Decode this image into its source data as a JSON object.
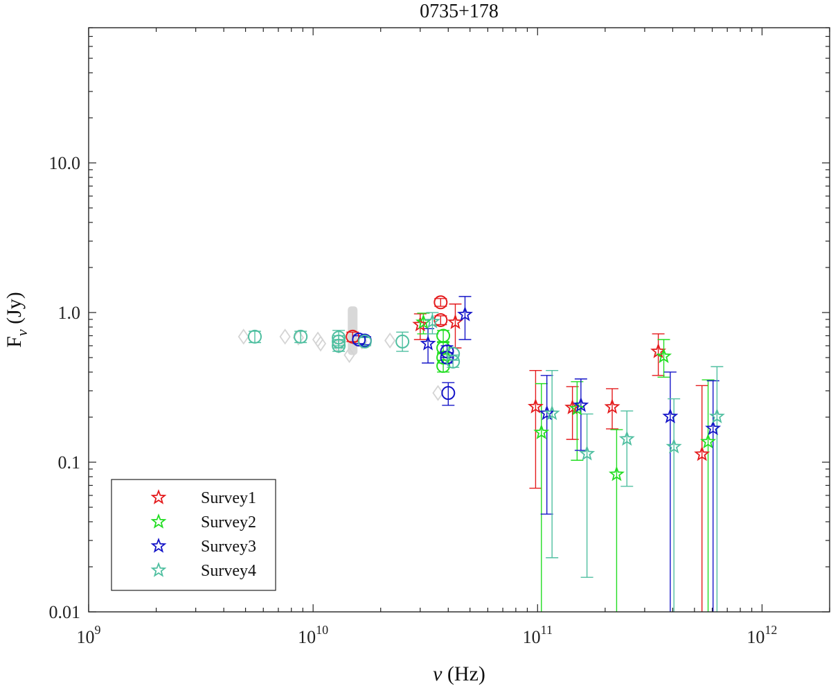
{
  "chart_data": {
    "type": "scatter",
    "title": "0735+178",
    "xlabel": "ν (Hz)",
    "ylabel_main": "F",
    "ylabel_sub": "ν",
    "ylabel_unit": " (Jy)",
    "xscale": "log",
    "yscale": "log",
    "xlim": [
      1000000000.0,
      2000000000000.0
    ],
    "ylim": [
      0.01,
      80
    ],
    "x_ticks": [
      {
        "value": 1000000000.0,
        "base": "10",
        "exp": "9"
      },
      {
        "value": 10000000000.0,
        "base": "10",
        "exp": "10"
      },
      {
        "value": 100000000000.0,
        "base": "10",
        "exp": "11"
      },
      {
        "value": 1000000000000.0,
        "base": "10",
        "exp": "12"
      }
    ],
    "y_ticks": [
      {
        "value": 0.01,
        "label": "0.01"
      },
      {
        "value": 0.1,
        "label": "0.1"
      },
      {
        "value": 1,
        "label": "1.0"
      },
      {
        "value": 10,
        "label": "10.0"
      }
    ],
    "legend": {
      "location": "lower-left",
      "entries": [
        "Survey1",
        "Survey2",
        "Survey3",
        "Survey4"
      ]
    },
    "colors": {
      "Survey1": "#e41a1c",
      "Survey2": "#22dd22",
      "Survey3": "#1414c8",
      "Survey4": "#4fbfa0",
      "archival": "#d4d4d4"
    },
    "archival_diamonds": [
      {
        "x": 4900000000.0,
        "y": 0.69
      },
      {
        "x": 7500000000.0,
        "y": 0.69
      },
      {
        "x": 8600000000.0,
        "y": 0.68
      },
      {
        "x": 10500000000.0,
        "y": 0.66
      },
      {
        "x": 10800000000.0,
        "y": 0.62
      },
      {
        "x": 13000000000.0,
        "y": 0.6
      },
      {
        "x": 14500000000.0,
        "y": 0.52
      },
      {
        "x": 16500000000.0,
        "y": 0.64
      },
      {
        "x": 22000000000.0,
        "y": 0.65
      },
      {
        "x": 36000000000.0,
        "y": 0.29
      },
      {
        "x": 40000000000.0,
        "y": 0.5
      }
    ],
    "archival_band": {
      "x": 15000000000.0,
      "y_low": 0.52,
      "y_high": 1.1
    },
    "circles": [
      {
        "series": "Survey4",
        "x": 5500000000.0,
        "y": 0.69,
        "yerr_low": 0.63,
        "yerr_high": 0.75
      },
      {
        "series": "Survey4",
        "x": 8800000000.0,
        "y": 0.69,
        "yerr_low": 0.63,
        "yerr_high": 0.75
      },
      {
        "series": "Survey4",
        "x": 13000000000.0,
        "y": 0.68,
        "yerr_low": 0.6,
        "yerr_high": 0.76
      },
      {
        "series": "Survey4",
        "x": 13000000000.0,
        "y": 0.64,
        "yerr_low": 0.58,
        "yerr_high": 0.7
      },
      {
        "series": "Survey4",
        "x": 13000000000.0,
        "y": 0.6,
        "yerr_low": 0.55,
        "yerr_high": 0.66
      },
      {
        "series": "Survey1",
        "x": 15000000000.0,
        "y": 0.69,
        "yerr_low": 0.64,
        "yerr_high": 0.74
      },
      {
        "series": "Survey3",
        "x": 16000000000.0,
        "y": 0.66,
        "yerr_low": 0.62,
        "yerr_high": 0.7
      },
      {
        "series": "Survey3",
        "x": 17000000000.0,
        "y": 0.65,
        "yerr_low": 0.61,
        "yerr_high": 0.69
      },
      {
        "series": "Survey4",
        "x": 17000000000.0,
        "y": 0.64,
        "yerr_low": 0.6,
        "yerr_high": 0.68
      },
      {
        "series": "Survey4",
        "x": 25000000000.0,
        "y": 0.64,
        "yerr_low": 0.55,
        "yerr_high": 0.74
      },
      {
        "series": "Survey1",
        "x": 37000000000.0,
        "y": 1.17,
        "yerr_low": 1.1,
        "yerr_high": 1.24
      },
      {
        "series": "Survey1",
        "x": 37000000000.0,
        "y": 0.89,
        "yerr_low": 0.83,
        "yerr_high": 0.95
      },
      {
        "series": "Survey2",
        "x": 38000000000.0,
        "y": 0.7,
        "yerr_low": 0.64,
        "yerr_high": 0.76
      },
      {
        "series": "Survey2",
        "x": 38000000000.0,
        "y": 0.58,
        "yerr_low": 0.53,
        "yerr_high": 0.63
      },
      {
        "series": "Survey2",
        "x": 38000000000.0,
        "y": 0.5,
        "yerr_low": 0.46,
        "yerr_high": 0.54
      },
      {
        "series": "Survey2",
        "x": 38000000000.0,
        "y": 0.44,
        "yerr_low": 0.4,
        "yerr_high": 0.48
      },
      {
        "series": "Survey3",
        "x": 39500000000.0,
        "y": 0.55,
        "yerr_low": 0.5,
        "yerr_high": 0.6
      },
      {
        "series": "Survey3",
        "x": 39500000000.0,
        "y": 0.5,
        "yerr_low": 0.46,
        "yerr_high": 0.54
      },
      {
        "series": "Survey3",
        "x": 40000000000.0,
        "y": 0.29,
        "yerr_low": 0.24,
        "yerr_high": 0.34
      },
      {
        "series": "Survey4",
        "x": 42000000000.0,
        "y": 0.53,
        "yerr_low": 0.48,
        "yerr_high": 0.58
      },
      {
        "series": "Survey4",
        "x": 42000000000.0,
        "y": 0.47,
        "yerr_low": 0.43,
        "yerr_high": 0.52
      }
    ],
    "stars": [
      {
        "series": "Survey1",
        "x": 30000000000.0,
        "y": 0.83,
        "yerr_low": 0.66,
        "yerr_high": 0.98
      },
      {
        "series": "Survey2",
        "x": 31000000000.0,
        "y": 0.86,
        "yerr_low": 0.72,
        "yerr_high": 0.99
      },
      {
        "series": "Survey3",
        "x": 32500000000.0,
        "y": 0.62,
        "yerr_low": 0.46,
        "yerr_high": 0.78
      },
      {
        "series": "Survey4",
        "x": 34000000000.0,
        "y": 0.87,
        "yerr_low": 0.72,
        "yerr_high": 1.0
      },
      {
        "series": "Survey1",
        "x": 43000000000.0,
        "y": 0.86,
        "yerr_low": 0.58,
        "yerr_high": 1.14
      },
      {
        "series": "Survey3",
        "x": 47500000000.0,
        "y": 0.97,
        "yerr_low": 0.66,
        "yerr_high": 1.28
      },
      {
        "series": "Survey1",
        "x": 98000000000.0,
        "y": 0.235,
        "yerr_low": 0.067,
        "yerr_high": 0.41
      },
      {
        "series": "Survey2",
        "x": 104000000000.0,
        "y": 0.158,
        "yerr_low": 0.001,
        "yerr_high": 0.335
      },
      {
        "series": "Survey3",
        "x": 110000000000.0,
        "y": 0.212,
        "yerr_low": 0.045,
        "yerr_high": 0.38
      },
      {
        "series": "Survey4",
        "x": 116000000000.0,
        "y": 0.212,
        "yerr_low": 0.023,
        "yerr_high": 0.41
      },
      {
        "series": "Survey1",
        "x": 143000000000.0,
        "y": 0.232,
        "yerr_low": 0.142,
        "yerr_high": 0.32
      },
      {
        "series": "Survey2",
        "x": 150000000000.0,
        "y": 0.228,
        "yerr_low": 0.103,
        "yerr_high": 0.345
      },
      {
        "series": "Survey3",
        "x": 156000000000.0,
        "y": 0.24,
        "yerr_low": 0.12,
        "yerr_high": 0.36
      },
      {
        "series": "Survey4",
        "x": 166000000000.0,
        "y": 0.114,
        "yerr_low": 0.017,
        "yerr_high": 0.21
      },
      {
        "series": "Survey1",
        "x": 215000000000.0,
        "y": 0.234,
        "yerr_low": 0.167,
        "yerr_high": 0.31
      },
      {
        "series": "Survey2",
        "x": 225000000000.0,
        "y": 0.083,
        "yerr_low": 0.001,
        "yerr_high": 0.165
      },
      {
        "series": "Survey4",
        "x": 250000000000.0,
        "y": 0.143,
        "yerr_low": 0.069,
        "yerr_high": 0.22
      },
      {
        "series": "Survey1",
        "x": 345000000000.0,
        "y": 0.55,
        "yerr_low": 0.38,
        "yerr_high": 0.72
      },
      {
        "series": "Survey2",
        "x": 365000000000.0,
        "y": 0.51,
        "yerr_low": 0.37,
        "yerr_high": 0.66
      },
      {
        "series": "Survey3",
        "x": 390000000000.0,
        "y": 0.202,
        "yerr_low": 0.001,
        "yerr_high": 0.4
      },
      {
        "series": "Survey4",
        "x": 405000000000.0,
        "y": 0.127,
        "yerr_low": 0.001,
        "yerr_high": 0.265
      },
      {
        "series": "Survey1",
        "x": 540000000000.0,
        "y": 0.113,
        "yerr_low": 0.001,
        "yerr_high": 0.325
      },
      {
        "series": "Survey2",
        "x": 575000000000.0,
        "y": 0.137,
        "yerr_low": 0.001,
        "yerr_high": 0.355
      },
      {
        "series": "Survey3",
        "x": 605000000000.0,
        "y": 0.168,
        "yerr_low": 0.001,
        "yerr_high": 0.35
      },
      {
        "series": "Survey4",
        "x": 630000000000.0,
        "y": 0.202,
        "yerr_low": 0.001,
        "yerr_high": 0.435
      }
    ]
  }
}
